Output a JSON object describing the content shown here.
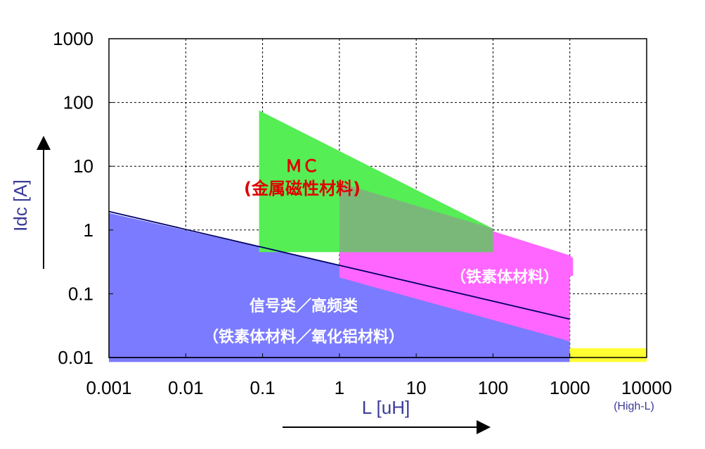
{
  "chart_data": {
    "type": "area",
    "title": "",
    "xlabel": "L [uH]",
    "ylabel": "Idc [A]",
    "x_scale": "log",
    "y_scale": "log",
    "xlim": [
      0.001,
      10000
    ],
    "ylim": [
      0.01,
      1000
    ],
    "x_ticks": [
      "0.001",
      "0.01",
      "0.1",
      "1",
      "10",
      "100",
      "1000",
      "10000"
    ],
    "y_ticks": [
      "0.01",
      "0.1",
      "1",
      "10",
      "100",
      "1000"
    ],
    "x_tick_values": [
      0.001,
      0.01,
      0.1,
      1,
      10,
      100,
      1000,
      10000
    ],
    "y_tick_values": [
      0.01,
      0.1,
      1,
      10,
      100,
      1000
    ],
    "grid": true,
    "x_note": "(High-L)",
    "regions": [
      {
        "label_lines": [
          "信号类／高频类",
          "（铁素体材料／氧化铝材料）"
        ],
        "color": "#7b7bff",
        "polygon": [
          [
            0.001,
            0.0085
          ],
          [
            1000,
            0.0085
          ],
          [
            1000,
            0.018
          ],
          [
            1,
            0.28
          ],
          [
            0.001,
            1.85
          ]
        ]
      },
      {
        "label_lines": [
          "（铁素体材料）"
        ],
        "color": "#ff66ff",
        "polygon": [
          [
            1,
            0.18
          ],
          [
            1,
            5.5
          ],
          [
            1000,
            0.4
          ],
          [
            1100,
            0.36
          ],
          [
            1100,
            0.19
          ],
          [
            1000,
            0.19
          ],
          [
            1000,
            0.018
          ]
        ]
      },
      {
        "label_lines": [
          "ＭＣ",
          "(金属磁性材料)"
        ],
        "color": "#55ee55",
        "polygon": [
          [
            0.09,
            0.45
          ],
          [
            0.09,
            75
          ],
          [
            100,
            1.05
          ],
          [
            100,
            0.45
          ]
        ]
      },
      {
        "label_lines": [],
        "color": "#7ab87a",
        "polygon": [
          [
            1,
            0.45
          ],
          [
            1,
            5.5
          ],
          [
            100,
            1.05
          ],
          [
            100,
            0.45
          ]
        ]
      },
      {
        "label_lines": [],
        "color": "#ffff33",
        "polygon": [
          [
            1000,
            0.0085
          ],
          [
            10000,
            0.0085
          ],
          [
            10000,
            0.014
          ],
          [
            1000,
            0.014
          ]
        ]
      }
    ],
    "lines": [
      {
        "color": "#000066",
        "points": [
          [
            0.001,
            1.95
          ],
          [
            1000,
            0.04
          ]
        ]
      }
    ],
    "labels": {
      "mc": "ＭＣ",
      "mc_sub": "(金属磁性材料)",
      "ferrite": "（铁素体材料）",
      "signal": "信号类／高频类",
      "signal_sub": "（铁素体材料／氧化铝材料）"
    }
  }
}
